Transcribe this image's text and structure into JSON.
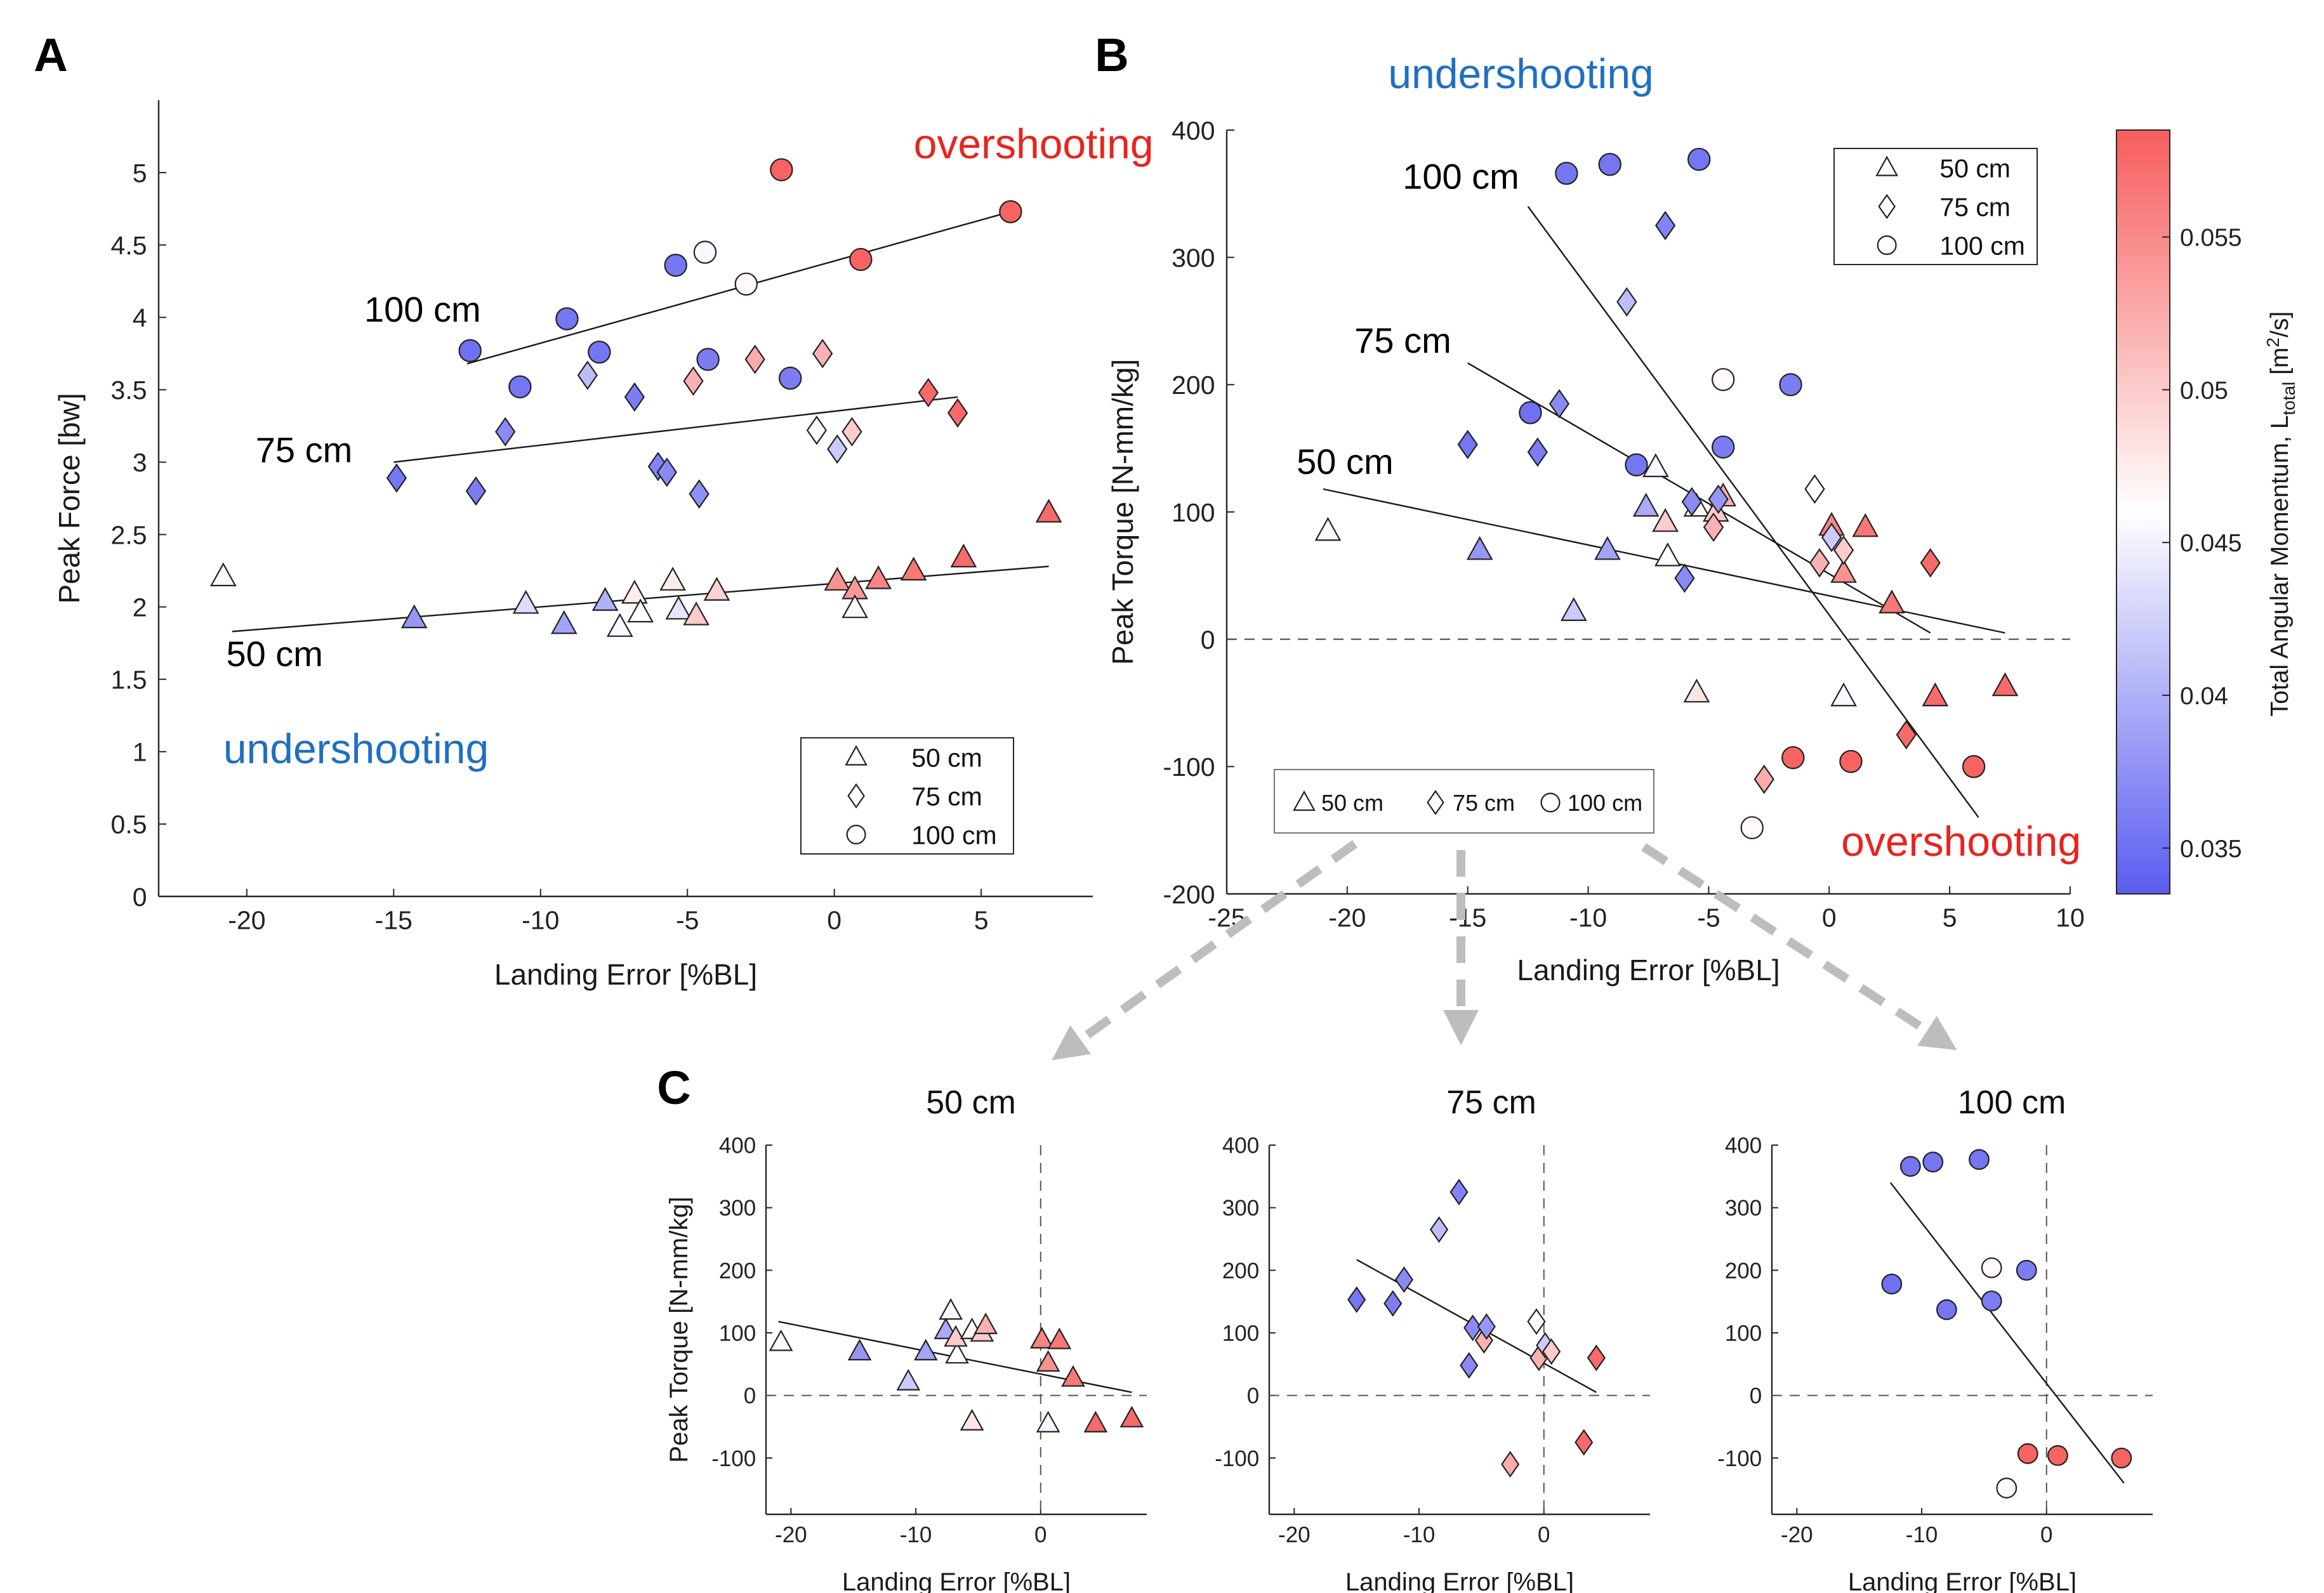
{
  "panel_labels": [
    "A",
    "B",
    "C"
  ],
  "colorbar": {
    "label": "Total Angular Momentum, L",
    "label_sub": "total",
    "label_unit_open": " [m",
    "label_unit_sup": "2",
    "label_unit_close": "/s]",
    "ticks": [
      0.035,
      0.04,
      0.045,
      0.05,
      0.055
    ],
    "range": [
      0.0335,
      0.0585
    ],
    "colormap": [
      "#5b5cf0",
      "#ffffff",
      "#f75d5d"
    ]
  },
  "chart_data": [
    {
      "id": "A",
      "type": "scatter",
      "xlabel": "Landing Error [%BL]",
      "ylabel": "Peak Force [bw]",
      "xlim": [
        -23,
        8.8
      ],
      "ylim": [
        0,
        5.5
      ],
      "xticks": [
        -20,
        -15,
        -10,
        -5,
        0,
        5
      ],
      "yticks": [
        0,
        0.5,
        1,
        1.5,
        2,
        2.5,
        3,
        3.5,
        4,
        4.5,
        5
      ],
      "grid": false,
      "legend_position": "bottom-right",
      "legend": [
        {
          "marker": "triangle",
          "label": "50 cm"
        },
        {
          "marker": "diamond",
          "label": "75 cm"
        },
        {
          "marker": "circle",
          "label": "100 cm"
        }
      ],
      "annotations": [
        {
          "text": "overshooting",
          "color": "#e8231f",
          "x": 2.7,
          "y": 5.1
        },
        {
          "text": "undershooting",
          "color": "#1f6fc4",
          "x": -20.8,
          "y": 0.92
        },
        {
          "text": "100 cm",
          "color": "#000000",
          "x": -16,
          "y": 3.97
        },
        {
          "text": "75 cm",
          "color": "#000000",
          "x": -19.7,
          "y": 3.0
        },
        {
          "text": "50 cm",
          "color": "#000000",
          "x": -20.7,
          "y": 1.59
        }
      ],
      "fits": [
        {
          "name": "100 cm",
          "x": [
            -12.5,
            6.0
          ],
          "y": [
            3.68,
            4.73
          ]
        },
        {
          "name": "75 cm",
          "x": [
            -15.0,
            4.2
          ],
          "y": [
            3.0,
            3.45
          ]
        },
        {
          "name": "50 cm",
          "x": [
            -20.5,
            7.3
          ],
          "y": [
            1.83,
            2.28
          ]
        }
      ],
      "series": [
        {
          "name": "50 cm",
          "marker": "triangle",
          "points": [
            {
              "x": -20.8,
              "y": 2.21,
              "c": 0.0455
            },
            {
              "x": -14.3,
              "y": 1.92,
              "c": 0.038
            },
            {
              "x": -10.5,
              "y": 2.02,
              "c": 0.0435
            },
            {
              "x": -9.2,
              "y": 1.88,
              "c": 0.039
            },
            {
              "x": -7.8,
              "y": 2.04,
              "c": 0.04
            },
            {
              "x": -7.3,
              "y": 1.86,
              "c": 0.0455
            },
            {
              "x": -6.8,
              "y": 2.09,
              "c": 0.0475
            },
            {
              "x": -6.6,
              "y": 1.96,
              "c": 0.046
            },
            {
              "x": -5.5,
              "y": 2.18,
              "c": 0.0475
            },
            {
              "x": -5.3,
              "y": 1.98,
              "c": 0.044
            },
            {
              "x": -4.7,
              "y": 1.94,
              "c": 0.05
            },
            {
              "x": -4.0,
              "y": 2.11,
              "c": 0.0495
            },
            {
              "x": 0.1,
              "y": 2.18,
              "c": 0.0545
            },
            {
              "x": 0.7,
              "y": 2.12,
              "c": 0.054
            },
            {
              "x": 0.7,
              "y": 1.99,
              "c": 0.0455
            },
            {
              "x": 1.5,
              "y": 2.19,
              "c": 0.0555
            },
            {
              "x": 2.7,
              "y": 2.25,
              "c": 0.0565
            },
            {
              "x": 4.4,
              "y": 2.34,
              "c": 0.0575
            },
            {
              "x": 7.3,
              "y": 2.65,
              "c": 0.0575
            }
          ]
        },
        {
          "name": "75 cm",
          "marker": "diamond",
          "points": [
            {
              "x": -14.9,
              "y": 2.89,
              "c": 0.0355
            },
            {
              "x": -12.2,
              "y": 2.8,
              "c": 0.036
            },
            {
              "x": -11.2,
              "y": 3.21,
              "c": 0.037
            },
            {
              "x": -8.4,
              "y": 3.6,
              "c": 0.041
            },
            {
              "x": -6.8,
              "y": 3.45,
              "c": 0.036
            },
            {
              "x": -6.0,
              "y": 2.97,
              "c": 0.0365
            },
            {
              "x": -5.7,
              "y": 2.93,
              "c": 0.037
            },
            {
              "x": -4.8,
              "y": 3.56,
              "c": 0.052
            },
            {
              "x": -4.6,
              "y": 2.78,
              "c": 0.0375
            },
            {
              "x": -2.7,
              "y": 3.71,
              "c": 0.0525
            },
            {
              "x": -0.4,
              "y": 3.75,
              "c": 0.052
            },
            {
              "x": -0.6,
              "y": 3.22,
              "c": 0.0455
            },
            {
              "x": 0.1,
              "y": 3.09,
              "c": 0.042
            },
            {
              "x": 0.6,
              "y": 3.21,
              "c": 0.05
            },
            {
              "x": 3.2,
              "y": 3.48,
              "c": 0.0575
            },
            {
              "x": 4.2,
              "y": 3.34,
              "c": 0.0575
            }
          ]
        },
        {
          "name": "100 cm",
          "marker": "circle",
          "points": [
            {
              "x": -12.4,
              "y": 3.77,
              "c": 0.035
            },
            {
              "x": -10.7,
              "y": 3.52,
              "c": 0.0355
            },
            {
              "x": -9.1,
              "y": 3.99,
              "c": 0.0355
            },
            {
              "x": -8.0,
              "y": 3.76,
              "c": 0.0355
            },
            {
              "x": -5.4,
              "y": 4.36,
              "c": 0.0355
            },
            {
              "x": -4.4,
              "y": 4.45,
              "c": 0.0455
            },
            {
              "x": -4.3,
              "y": 3.71,
              "c": 0.036
            },
            {
              "x": -3.0,
              "y": 4.23,
              "c": 0.0465
            },
            {
              "x": -1.5,
              "y": 3.58,
              "c": 0.036
            },
            {
              "x": -1.8,
              "y": 5.02,
              "c": 0.058
            },
            {
              "x": 0.9,
              "y": 4.4,
              "c": 0.058
            },
            {
              "x": 6.0,
              "y": 4.73,
              "c": 0.058
            }
          ]
        }
      ]
    },
    {
      "id": "B",
      "type": "scatter",
      "xlabel": "Landing Error [%BL]",
      "ylabel": "Peak Torque [N-mm/kg]",
      "xlim": [
        -25,
        10
      ],
      "ylim": [
        -200,
        400
      ],
      "xticks": [
        -25,
        -20,
        -15,
        -10,
        -5,
        0,
        5,
        10
      ],
      "yticks": [
        -200,
        -100,
        0,
        100,
        200,
        300,
        400
      ],
      "grid": false,
      "zero_line": "dashed-horizontal",
      "legend_position": "top-right",
      "legend": [
        {
          "marker": "triangle",
          "label": "50 cm"
        },
        {
          "marker": "diamond",
          "label": "75 cm"
        },
        {
          "marker": "circle",
          "label": "100 cm"
        }
      ],
      "annotations": [
        {
          "text": "undershooting",
          "color": "#1f6fc4",
          "x": -18.3,
          "y": 433
        },
        {
          "text": "overshooting",
          "color": "#e8231f",
          "x": 0.5,
          "y": -170
        },
        {
          "text": "100 cm",
          "color": "#000000",
          "x": -17.7,
          "y": 354
        },
        {
          "text": "75 cm",
          "color": "#000000",
          "x": -19.7,
          "y": 225
        },
        {
          "text": "50 cm",
          "color": "#000000",
          "x": -22.1,
          "y": 130
        }
      ],
      "fits": [
        {
          "name": "100 cm",
          "x": [
            -12.5,
            6.2
          ],
          "y": [
            340,
            -140
          ]
        },
        {
          "name": "75 cm",
          "x": [
            -15.0,
            4.2
          ],
          "y": [
            217,
            5
          ]
        },
        {
          "name": "50 cm",
          "x": [
            -21.0,
            7.3
          ],
          "y": [
            118,
            5
          ]
        }
      ],
      "series": [
        {
          "name": "50 cm",
          "marker": "triangle",
          "points": [
            {
              "x": -20.8,
              "y": 85,
              "c": 0.0455
            },
            {
              "x": -14.5,
              "y": 70,
              "c": 0.038
            },
            {
              "x": -10.6,
              "y": 22,
              "c": 0.042
            },
            {
              "x": -9.2,
              "y": 70,
              "c": 0.039
            },
            {
              "x": -7.6,
              "y": 104,
              "c": 0.0395
            },
            {
              "x": -7.2,
              "y": 135,
              "c": 0.0455
            },
            {
              "x": -6.7,
              "y": 65,
              "c": 0.046
            },
            {
              "x": -6.8,
              "y": 92,
              "c": 0.05
            },
            {
              "x": -5.5,
              "y": 104,
              "c": 0.0465
            },
            {
              "x": -4.7,
              "y": 100,
              "c": 0.05
            },
            {
              "x": -5.5,
              "y": -42,
              "c": 0.048
            },
            {
              "x": -4.4,
              "y": 112,
              "c": 0.052
            },
            {
              "x": 0.1,
              "y": 89,
              "c": 0.0555
            },
            {
              "x": 0.6,
              "y": 52,
              "c": 0.0545
            },
            {
              "x": 0.6,
              "y": -45,
              "c": 0.0455
            },
            {
              "x": 1.5,
              "y": 88,
              "c": 0.0565
            },
            {
              "x": 2.6,
              "y": 28,
              "c": 0.0565
            },
            {
              "x": 4.4,
              "y": -45,
              "c": 0.0575
            },
            {
              "x": 7.3,
              "y": -37,
              "c": 0.0575
            }
          ]
        },
        {
          "name": "75 cm",
          "marker": "diamond",
          "points": [
            {
              "x": -15.0,
              "y": 153,
              "c": 0.0355
            },
            {
              "x": -12.1,
              "y": 147,
              "c": 0.036
            },
            {
              "x": -11.2,
              "y": 185,
              "c": 0.037
            },
            {
              "x": -8.4,
              "y": 265,
              "c": 0.041
            },
            {
              "x": -6.8,
              "y": 325,
              "c": 0.0365
            },
            {
              "x": -6.0,
              "y": 48,
              "c": 0.037
            },
            {
              "x": -5.7,
              "y": 108,
              "c": 0.037
            },
            {
              "x": -4.8,
              "y": 88,
              "c": 0.052
            },
            {
              "x": -4.6,
              "y": 110,
              "c": 0.038
            },
            {
              "x": -2.7,
              "y": -110,
              "c": 0.0525
            },
            {
              "x": -0.6,
              "y": 118,
              "c": 0.046
            },
            {
              "x": -0.4,
              "y": 60,
              "c": 0.052
            },
            {
              "x": 0.1,
              "y": 80,
              "c": 0.042
            },
            {
              "x": 0.6,
              "y": 70,
              "c": 0.05
            },
            {
              "x": 3.2,
              "y": -75,
              "c": 0.0575
            },
            {
              "x": 4.2,
              "y": 60,
              "c": 0.0575
            }
          ]
        },
        {
          "name": "100 cm",
          "marker": "circle",
          "points": [
            {
              "x": -12.4,
              "y": 178,
              "c": 0.035
            },
            {
              "x": -10.9,
              "y": 366,
              "c": 0.0355
            },
            {
              "x": -9.1,
              "y": 373,
              "c": 0.0355
            },
            {
              "x": -8.0,
              "y": 137,
              "c": 0.0355
            },
            {
              "x": -5.4,
              "y": 377,
              "c": 0.0355
            },
            {
              "x": -4.4,
              "y": 204,
              "c": 0.0465
            },
            {
              "x": -4.4,
              "y": 151,
              "c": 0.036
            },
            {
              "x": -3.2,
              "y": -148,
              "c": 0.0465
            },
            {
              "x": -1.6,
              "y": 200,
              "c": 0.036
            },
            {
              "x": -1.5,
              "y": -93,
              "c": 0.058
            },
            {
              "x": 0.9,
              "y": -96,
              "c": 0.058
            },
            {
              "x": 6.0,
              "y": -100,
              "c": 0.058
            }
          ]
        }
      ]
    },
    {
      "id": "C1",
      "type": "scatter",
      "title": "50 cm",
      "xlabel": "Landing Error [%BL]",
      "ylabel": "Peak Torque [N-mm/kg]",
      "xlim": [
        -22,
        8.5
      ],
      "ylim": [
        -190,
        400
      ],
      "xticks": [
        -20,
        -10,
        0
      ],
      "yticks": [
        -100,
        0,
        100,
        200,
        300,
        400
      ],
      "grid": false,
      "zero_lines": [
        "dashed-horizontal",
        "dashed-vertical"
      ],
      "fits": [
        {
          "x": [
            -21.0,
            7.3
          ],
          "y": [
            118,
            5
          ]
        }
      ],
      "series_ref": "B:50 cm"
    },
    {
      "id": "C2",
      "type": "scatter",
      "title": "75 cm",
      "xlabel": "Landing Error [%BL]",
      "xlim": [
        -22,
        8.5
      ],
      "ylim": [
        -190,
        400
      ],
      "xticks": [
        -20,
        -10,
        0
      ],
      "yticks": [
        -100,
        0,
        100,
        200,
        300,
        400
      ],
      "grid": false,
      "zero_lines": [
        "dashed-horizontal",
        "dashed-vertical"
      ],
      "fits": [
        {
          "x": [
            -15.0,
            4.2
          ],
          "y": [
            217,
            5
          ]
        }
      ],
      "series_ref": "B:75 cm"
    },
    {
      "id": "C3",
      "type": "scatter",
      "title": "100 cm",
      "xlabel": "Landing Error [%BL]",
      "xlim": [
        -22,
        8.5
      ],
      "ylim": [
        -190,
        400
      ],
      "xticks": [
        -20,
        -10,
        0
      ],
      "yticks": [
        -100,
        0,
        100,
        200,
        300,
        400
      ],
      "grid": false,
      "zero_lines": [
        "dashed-horizontal",
        "dashed-vertical"
      ],
      "fits": [
        {
          "x": [
            -12.5,
            6.2
          ],
          "y": [
            340,
            -140
          ]
        }
      ],
      "series_ref": "B:100 cm"
    }
  ]
}
